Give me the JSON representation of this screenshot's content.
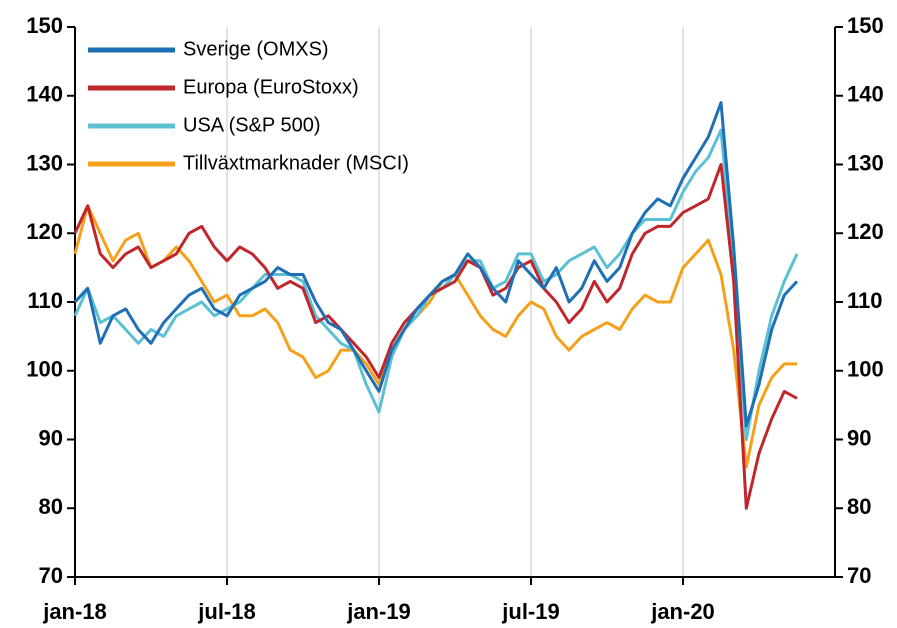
{
  "chart_data": {
    "type": "line",
    "x": [
      0,
      0.5,
      1,
      1.5,
      2,
      2.5,
      3,
      3.5,
      4,
      4.5,
      5,
      5.5,
      6,
      6.5,
      7,
      7.5,
      8,
      8.5,
      9,
      9.5,
      10,
      10.5,
      11,
      11.5,
      12,
      12.5,
      13,
      13.5,
      14,
      14.5,
      15,
      15.5,
      16,
      16.5,
      17,
      17.5,
      18,
      18.5,
      19,
      19.5,
      20,
      20.5,
      21,
      21.5,
      22,
      22.5,
      23,
      23.5,
      24,
      24.5,
      25,
      25.5,
      26,
      26.5,
      27,
      27.5,
      28,
      28.5
    ],
    "series": [
      {
        "name": "Sverige (OMXS)",
        "color": "#1f6fb5",
        "values": [
          110,
          112,
          104,
          108,
          109,
          106,
          104,
          107,
          109,
          111,
          112,
          109,
          108,
          111,
          112,
          113,
          115,
          114,
          114,
          110,
          107,
          106,
          103,
          100,
          97,
          103,
          106,
          109,
          111,
          113,
          114,
          117,
          115,
          112,
          110,
          116,
          114,
          112,
          115,
          110,
          112,
          116,
          113,
          115,
          120,
          123,
          125,
          124,
          128,
          131,
          134,
          139,
          118,
          92,
          98,
          106,
          111,
          113
        ]
      },
      {
        "name": "Europa (EuroStoxx)",
        "color": "#c0272d",
        "values": [
          120,
          124,
          117,
          115,
          117,
          118,
          115,
          116,
          117,
          120,
          121,
          118,
          116,
          118,
          117,
          115,
          112,
          113,
          112,
          107,
          108,
          106,
          104,
          102,
          99,
          104,
          107,
          109,
          111,
          112,
          113,
          116,
          115,
          111,
          112,
          115,
          116,
          112,
          110,
          107,
          109,
          113,
          110,
          112,
          117,
          120,
          121,
          121,
          123,
          124,
          125,
          130,
          113,
          80,
          88,
          93,
          97,
          96
        ]
      },
      {
        "name": "USA (S&P 500)",
        "color": "#5bc0d3",
        "values": [
          108,
          112,
          107,
          108,
          106,
          104,
          106,
          105,
          108,
          109,
          110,
          108,
          109,
          110,
          112,
          114,
          114,
          114,
          113,
          108,
          106,
          104,
          103,
          98,
          94,
          102,
          106,
          108,
          111,
          112,
          114,
          116,
          116,
          112,
          113,
          117,
          117,
          113,
          114,
          116,
          117,
          118,
          115,
          117,
          120,
          122,
          122,
          122,
          126,
          129,
          131,
          135,
          115,
          90,
          100,
          108,
          113,
          117
        ]
      },
      {
        "name": "Tillväxtmarknader (MSCI)",
        "color": "#f5a01a",
        "values": [
          117,
          124,
          120,
          116,
          119,
          120,
          115,
          116,
          118,
          116,
          113,
          110,
          111,
          108,
          108,
          109,
          107,
          103,
          102,
          99,
          100,
          103,
          103,
          101,
          98,
          103,
          106,
          108,
          110,
          113,
          114,
          111,
          108,
          106,
          105,
          108,
          110,
          109,
          105,
          103,
          105,
          106,
          107,
          106,
          109,
          111,
          110,
          110,
          115,
          117,
          119,
          114,
          103,
          86,
          95,
          99,
          101,
          101
        ]
      }
    ],
    "xlim": [
      0,
      30
    ],
    "xticks": [
      {
        "value": 0,
        "label": "jan-18"
      },
      {
        "value": 6,
        "label": "jul-18"
      },
      {
        "value": 12,
        "label": "jan-19"
      },
      {
        "value": 18,
        "label": "jul-19"
      },
      {
        "value": 24,
        "label": "jan-20"
      }
    ],
    "ylim": [
      70,
      150
    ],
    "yticks": [
      70,
      80,
      90,
      100,
      110,
      120,
      130,
      140,
      150
    ],
    "y2lim": [
      70,
      150
    ],
    "y2ticks": [
      70,
      80,
      90,
      100,
      110,
      120,
      130,
      140,
      150
    ],
    "grid": true
  }
}
